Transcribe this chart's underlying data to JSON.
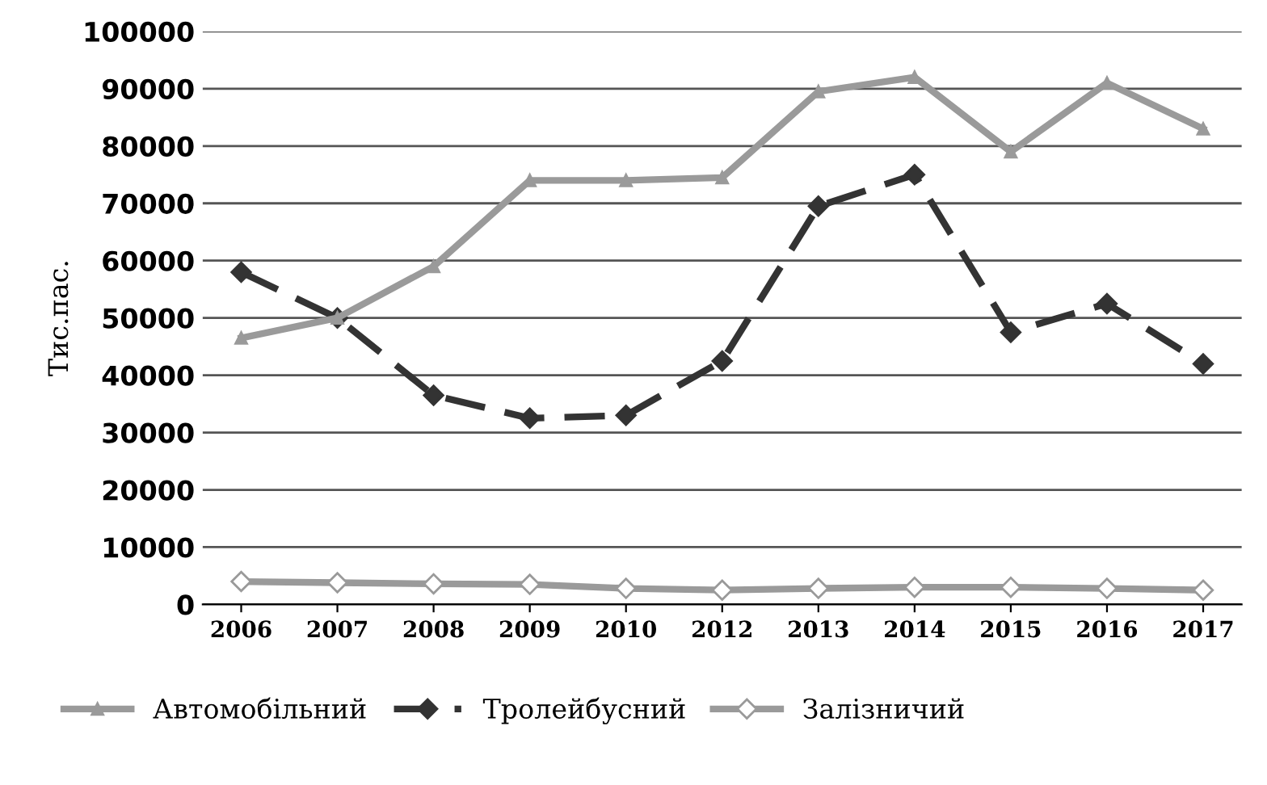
{
  "chart_data": {
    "type": "line",
    "ylabel": "Тис.пас.",
    "categories": [
      "2006",
      "2007",
      "2008",
      "2009",
      "2010",
      "2012",
      "2013",
      "2014",
      "2015",
      "2016",
      "2017"
    ],
    "series": [
      {
        "name": "Автомобільний",
        "color": "#9a9a9a",
        "marker": "triangle",
        "line_style": "solid",
        "values": [
          46500,
          50000,
          59000,
          74000,
          74000,
          74500,
          89500,
          92000,
          79000,
          91000,
          83000
        ]
      },
      {
        "name": "Тролейбусний",
        "color": "#333333",
        "marker": "diamond",
        "line_style": "dashed",
        "values": [
          58000,
          50000,
          36500,
          32500,
          33000,
          42500,
          69500,
          75000,
          47500,
          52500,
          42000
        ]
      },
      {
        "name": "Залізничий",
        "color": "#9a9a9a",
        "marker": "diamond",
        "line_style": "solid",
        "values": [
          4000,
          3800,
          3600,
          3500,
          2800,
          2500,
          2800,
          3000,
          3000,
          2800,
          2500
        ]
      }
    ],
    "ylim": [
      0,
      100000
    ],
    "yticks": [
      0,
      10000,
      20000,
      30000,
      40000,
      50000,
      60000,
      70000,
      80000,
      90000,
      100000
    ],
    "grid": "y",
    "legend": "bottom"
  }
}
